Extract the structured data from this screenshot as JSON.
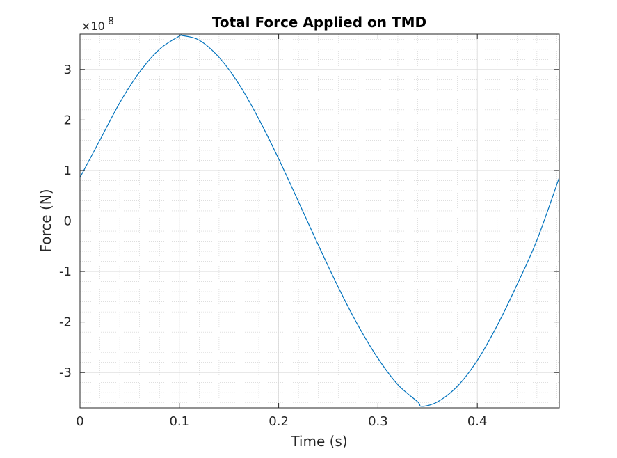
{
  "chart_data": {
    "type": "line",
    "title": "Total Force Applied on TMD",
    "xlabel": "Time (s)",
    "ylabel": "Force (N)",
    "xlim": [
      0,
      0.4825
    ],
    "ylim": [
      -370000000,
      370000000
    ],
    "y_exponent_label": "×10",
    "y_exponent_power": "8",
    "x_ticks": [
      {
        "value": 0,
        "label": "0"
      },
      {
        "value": 0.1,
        "label": "0.1"
      },
      {
        "value": 0.2,
        "label": "0.2"
      },
      {
        "value": 0.3,
        "label": "0.3"
      },
      {
        "value": 0.4,
        "label": "0.4"
      }
    ],
    "y_ticks": [
      {
        "value": 300000000,
        "label": "3"
      },
      {
        "value": 200000000,
        "label": "2"
      },
      {
        "value": 100000000,
        "label": "1"
      },
      {
        "value": 0,
        "label": "0"
      },
      {
        "value": -100000000,
        "label": "-1"
      },
      {
        "value": -200000000,
        "label": "-2"
      },
      {
        "value": -300000000,
        "label": "-3"
      }
    ],
    "grid": true,
    "minor_grid": true,
    "colors": {
      "line": "#0072BD",
      "axis": "#262626",
      "grid": "#d9d9d9",
      "minor_grid": "#cccccc"
    },
    "series": [
      {
        "x": [
          0,
          0.02,
          0.04,
          0.06,
          0.08,
          0.1,
          0.103,
          0.12,
          0.14,
          0.16,
          0.18,
          0.2,
          0.22,
          0.24,
          0.26,
          0.28,
          0.3,
          0.32,
          0.34,
          0.344,
          0.36,
          0.38,
          0.4,
          0.42,
          0.44,
          0.46,
          0.4825
        ],
        "values": [
          86000000,
          160000000,
          234000000,
          295000000,
          340000000,
          366000000,
          367000000,
          358000000,
          324000000,
          271000000,
          202000000,
          123000000,
          38000000,
          -48000000,
          -131000000,
          -207000000,
          -272000000,
          -324000000,
          -358000000,
          -367000000,
          -358000000,
          -327000000,
          -276000000,
          -207000000,
          -126000000,
          -38000000,
          86000000
        ]
      }
    ]
  }
}
